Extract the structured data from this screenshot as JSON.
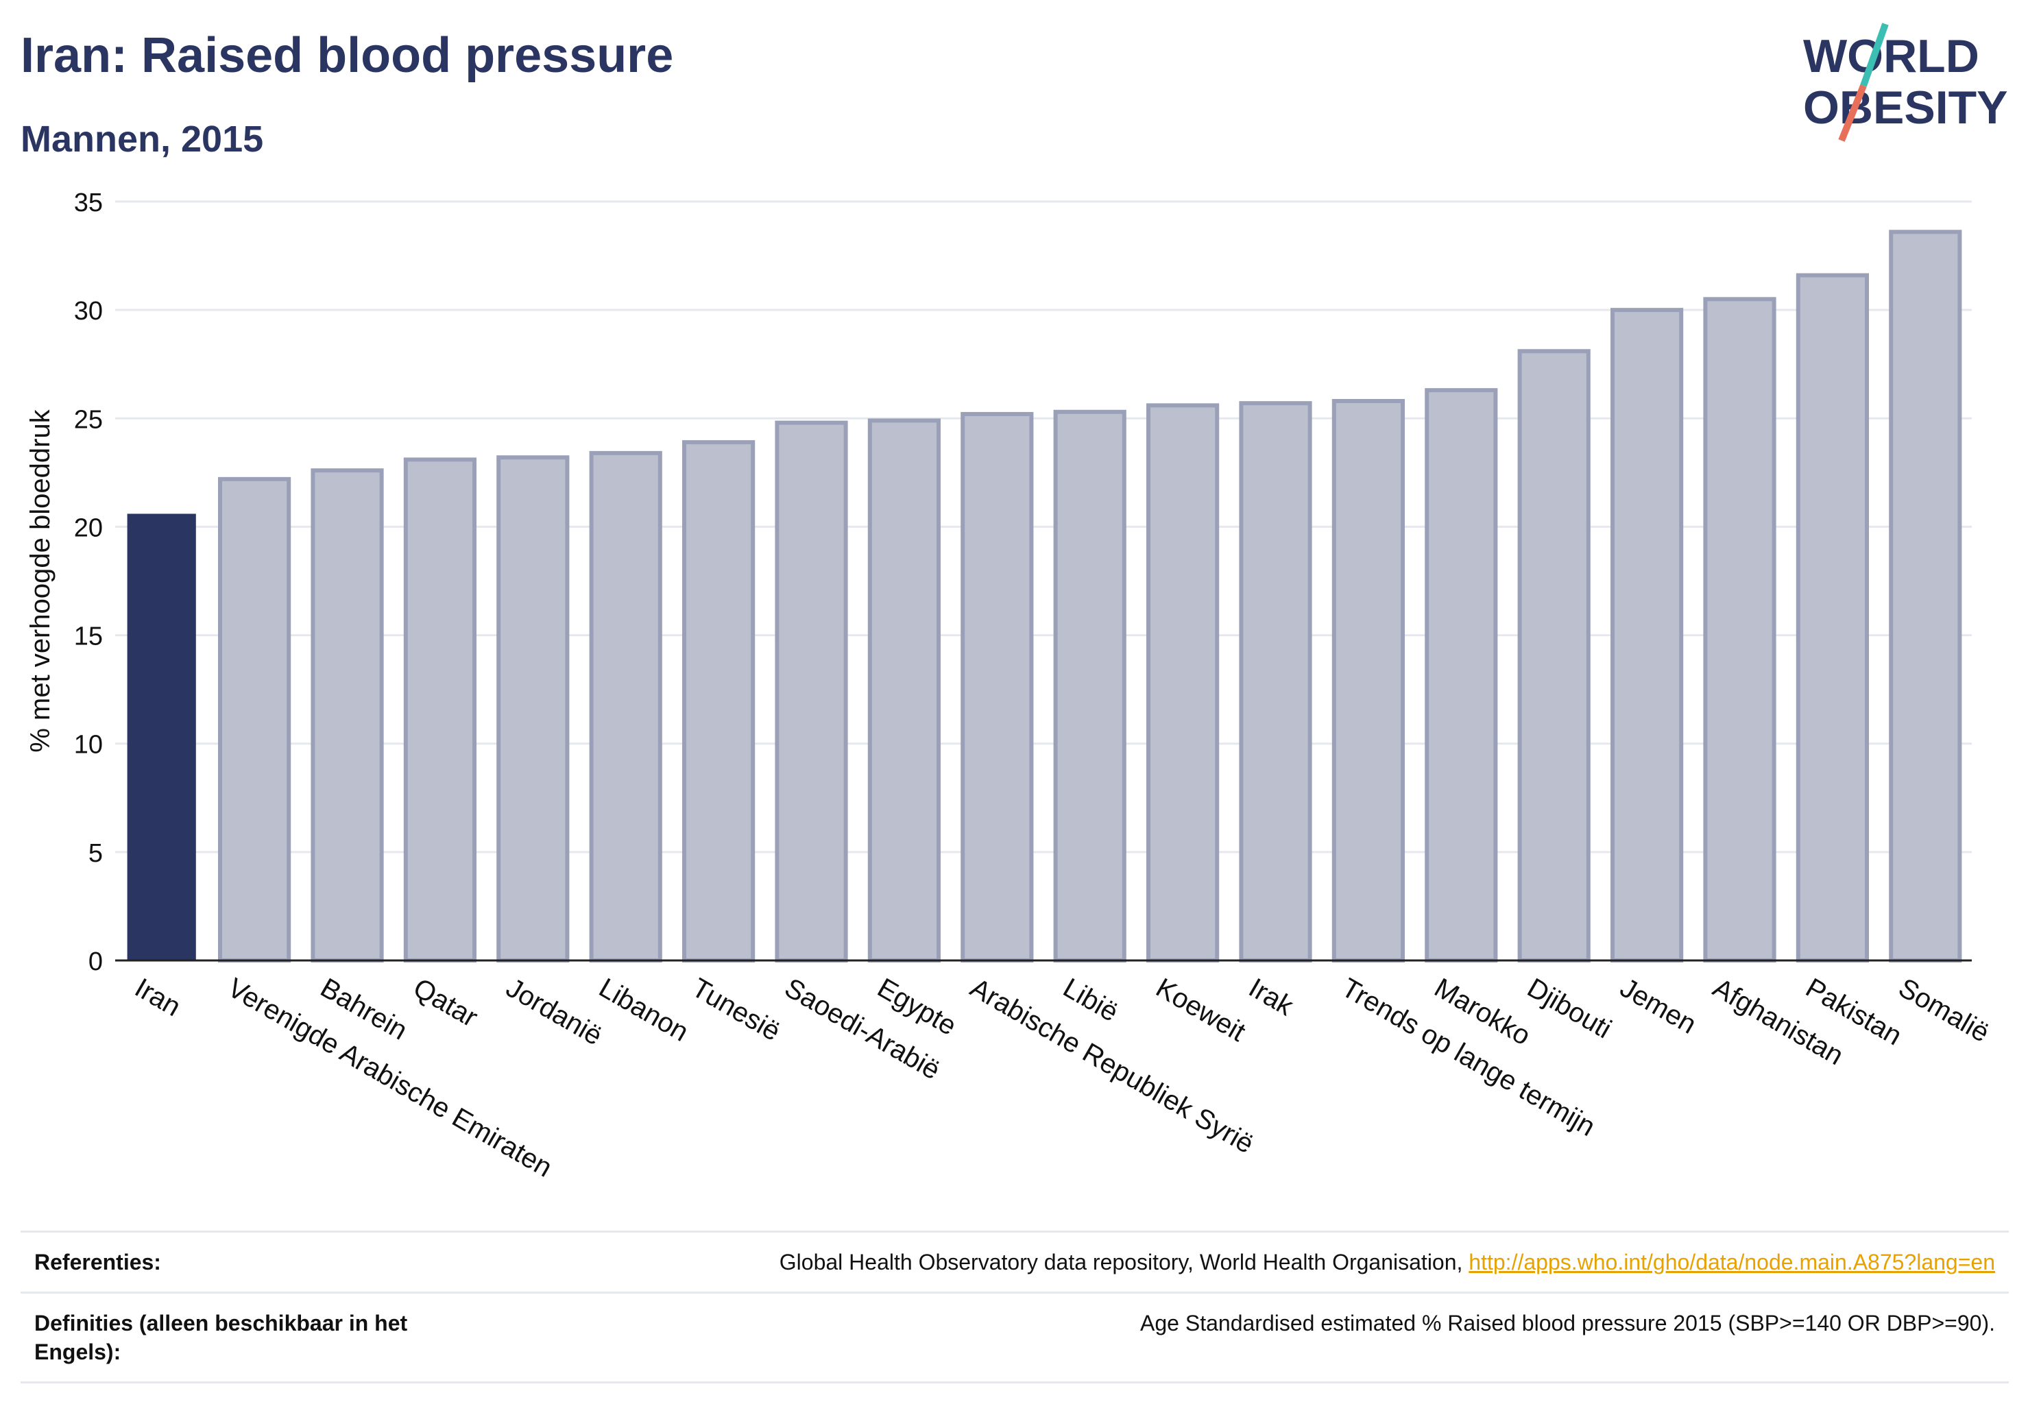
{
  "header": {
    "title": "Iran: Raised blood pressure",
    "subtitle": "Mannen, 2015"
  },
  "logo": {
    "line1": "WORLD",
    "line2": "OBESITY",
    "accent_teal": "#3bbfb3",
    "accent_red": "#e8705a"
  },
  "colors": {
    "highlight": "#2b3561",
    "bar_fill": "#bcc0ce",
    "bar_stroke": "#9aa0b8",
    "grid": "#e6e8f0"
  },
  "chart_data": {
    "type": "bar",
    "ylabel": "% met verhoogde bloeddruk",
    "ylim": [
      0,
      35
    ],
    "yticks": [
      0,
      5,
      10,
      15,
      20,
      25,
      30,
      35
    ],
    "grid": true,
    "highlight_category": "Iran",
    "categories": [
      "Iran",
      "Verenigde Arabische Emiraten",
      "Bahrein",
      "Qatar",
      "Jordanië",
      "Libanon",
      "Tunesië",
      "Saoedi-Arabië",
      "Egypte",
      "Arabische Republiek Syrië",
      "Libië",
      "Koeweit",
      "Irak",
      "Trends op lange termijn",
      "Marokko",
      "Djibouti",
      "Jemen",
      "Afghanistan",
      "Pakistan",
      "Somalië"
    ],
    "values": [
      20.6,
      22.2,
      22.6,
      23.1,
      23.2,
      23.4,
      23.9,
      24.8,
      24.9,
      25.2,
      25.3,
      25.6,
      25.7,
      25.8,
      26.3,
      28.1,
      30.0,
      30.5,
      31.6,
      33.6
    ]
  },
  "footer": {
    "references_label": "Referenties:",
    "references_text": "Global Health Observatory data repository, World Health Organisation, ",
    "references_link": "http://apps.who.int/gho/data/node.main.A875?lang=en",
    "definitions_label": "Definities (alleen beschikbaar in het Engels):",
    "definitions_text": "Age Standardised estimated % Raised blood pressure 2015 (SBP>=140 OR DBP>=90)."
  }
}
